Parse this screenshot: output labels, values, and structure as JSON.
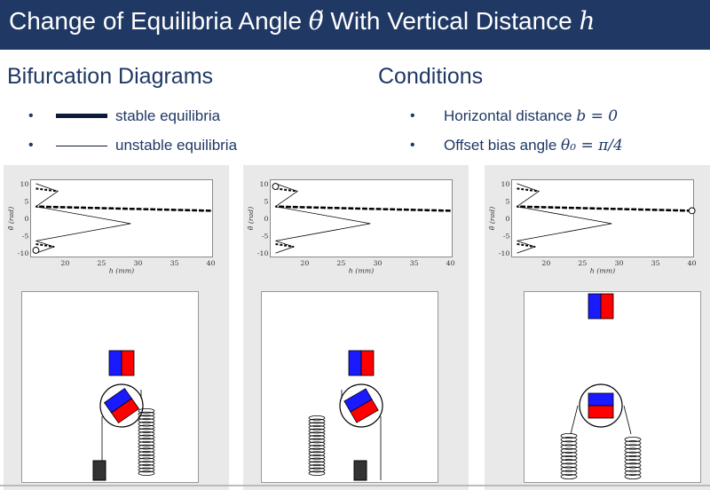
{
  "slide": {
    "title_prefix": "Change of Equilibria Angle ",
    "title_theta": "θ̃",
    "title_mid": " With Vertical Distance ",
    "title_h": "h"
  },
  "left": {
    "heading": "Bifurcation Diagrams",
    "legend": [
      {
        "label": "stable equilibria"
      },
      {
        "label": "unstable equilibria"
      }
    ]
  },
  "right": {
    "heading": "Conditions",
    "items": [
      {
        "text": "Horizontal distance ",
        "math": "b = 0"
      },
      {
        "text": "Offset bias angle ",
        "math": "θ₀ = π/4"
      }
    ]
  },
  "plots": {
    "ylabel": "θ̃ (rad)",
    "xlabel": "h (mm)",
    "yticks": [
      "10",
      "5",
      "0",
      "-5",
      "-10"
    ],
    "xticks": [
      "20",
      "25",
      "30",
      "35",
      "40"
    ]
  },
  "chart_data": [
    {
      "type": "line",
      "xlabel": "h (mm)",
      "ylabel": "θ̃ (rad)",
      "xlim": [
        15.5,
        40
      ],
      "ylim": [
        -11,
        11
      ],
      "series": [
        {
          "name": "stable equilibria",
          "x": [
            40,
            16
          ],
          "y": [
            2.2,
            3.4
          ]
        },
        {
          "name": "unstable equilibria",
          "x": [
            16,
            19,
            16,
            29,
            16,
            18.5,
            16
          ],
          "y": [
            10,
            7.8,
            3.4,
            -1.5,
            -6.5,
            -8.2,
            -10
          ]
        }
      ],
      "marker": {
        "x": 16,
        "y": -9.2
      }
    },
    {
      "type": "line",
      "xlabel": "h (mm)",
      "ylabel": "θ̃ (rad)",
      "xlim": [
        15.5,
        40
      ],
      "ylim": [
        -11,
        11
      ],
      "marker": {
        "x": 16,
        "y": 9.2
      }
    },
    {
      "type": "line",
      "xlabel": "h (mm)",
      "ylabel": "θ̃ (rad)",
      "xlim": [
        15.5,
        40
      ],
      "ylim": [
        -11,
        11
      ],
      "marker": {
        "x": 40,
        "y": 2.2
      }
    }
  ],
  "colors": {
    "title_bg": "#1f3864",
    "text": "#1f3864",
    "magnet_red": "#ff0000",
    "magnet_blue": "#1a1aff"
  }
}
